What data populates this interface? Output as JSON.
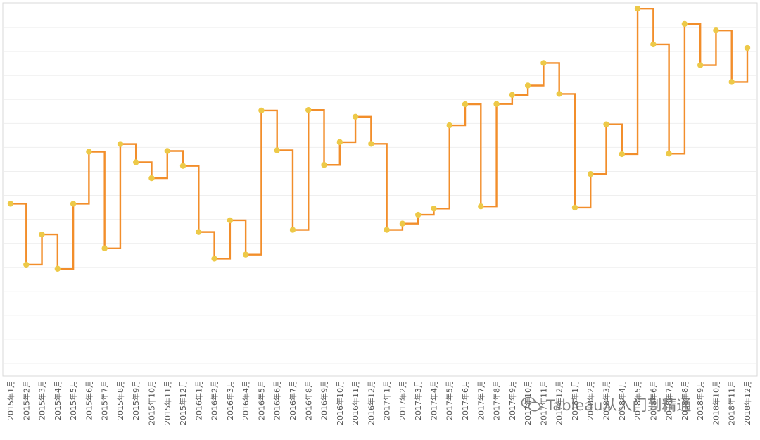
{
  "chart_data": {
    "type": "line",
    "line_shape": "step",
    "categories": [
      "2015年1月",
      "2015年2月",
      "2015年3月",
      "2015年4月",
      "2015年5月",
      "2015年6月",
      "2015年7月",
      "2015年8月",
      "2015年9月",
      "2015年10月",
      "2015年11月",
      "2015年12月",
      "2016年1月",
      "2016年2月",
      "2016年3月",
      "2016年4月",
      "2016年5月",
      "2016年6月",
      "2016年7月",
      "2016年8月",
      "2016年9月",
      "2016年10月",
      "2016年11月",
      "2016年12月",
      "2017年1月",
      "2017年2月",
      "2017年3月",
      "2017年4月",
      "2017年5月",
      "2017年6月",
      "2017年7月",
      "2017年8月",
      "2017年9月",
      "2017年10月",
      "2017年11月",
      "2017年12月",
      "2018年1月",
      "2018年2月",
      "2018年3月",
      "2018年4月",
      "2018年5月",
      "2018年6月",
      "2018年7月",
      "2018年8月",
      "2018年9月",
      "2018年10月",
      "2018年11月",
      "2018年12月"
    ],
    "values": [
      46.5,
      21.1,
      33.7,
      19.4,
      46.5,
      68.2,
      27.9,
      71.4,
      63.8,
      57.2,
      68.5,
      62.3,
      34.7,
      23.6,
      39.6,
      25.3,
      85.4,
      68.8,
      35.6,
      85.6,
      62.7,
      72.2,
      82.8,
      71.5,
      35.6,
      38.2,
      41.9,
      44.5,
      79.2,
      88.0,
      45.4,
      88.1,
      91.9,
      95.8,
      105.2,
      92.3,
      44.9,
      58.9,
      79.6,
      67.2,
      127.9,
      113.0,
      67.4,
      121.5,
      104.3,
      118.8,
      97.3,
      111.5
    ],
    "ylim": [
      -25,
      130
    ],
    "grid": true,
    "legend": "none",
    "line_color": "#F28E2B",
    "marker_color": "#EDC948"
  },
  "watermark": {
    "text": "Tableau从入门到精通",
    "icon": "wechat-icon"
  }
}
